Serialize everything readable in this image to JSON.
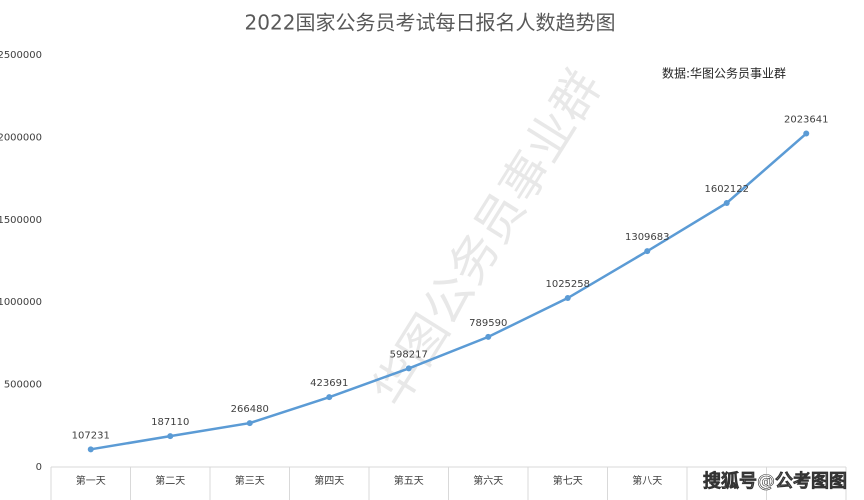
{
  "chart_data": {
    "type": "line",
    "title": "2022国家公务员考试每日报名人数趋势图",
    "annotation": "数据:华图公务员事业群",
    "watermarks": [
      "华图公务员事业群",
      "搜狐号@公考图图"
    ],
    "categories": [
      "第一天",
      "第二天",
      "第三天",
      "第四天",
      "第五天",
      "第六天",
      "第七天",
      "第八天",
      null,
      null
    ],
    "series": [
      {
        "name": "每日报名人数",
        "color": "#5b9bd5",
        "values": [
          107231,
          187110,
          266480,
          423691,
          598217,
          789590,
          1025258,
          1309683,
          1602122,
          2023641
        ]
      }
    ],
    "ylim": [
      0,
      2500000
    ],
    "yticks": [
      0,
      500000,
      1000000,
      1500000,
      2000000,
      2500000
    ],
    "grid": false,
    "legend": false
  }
}
